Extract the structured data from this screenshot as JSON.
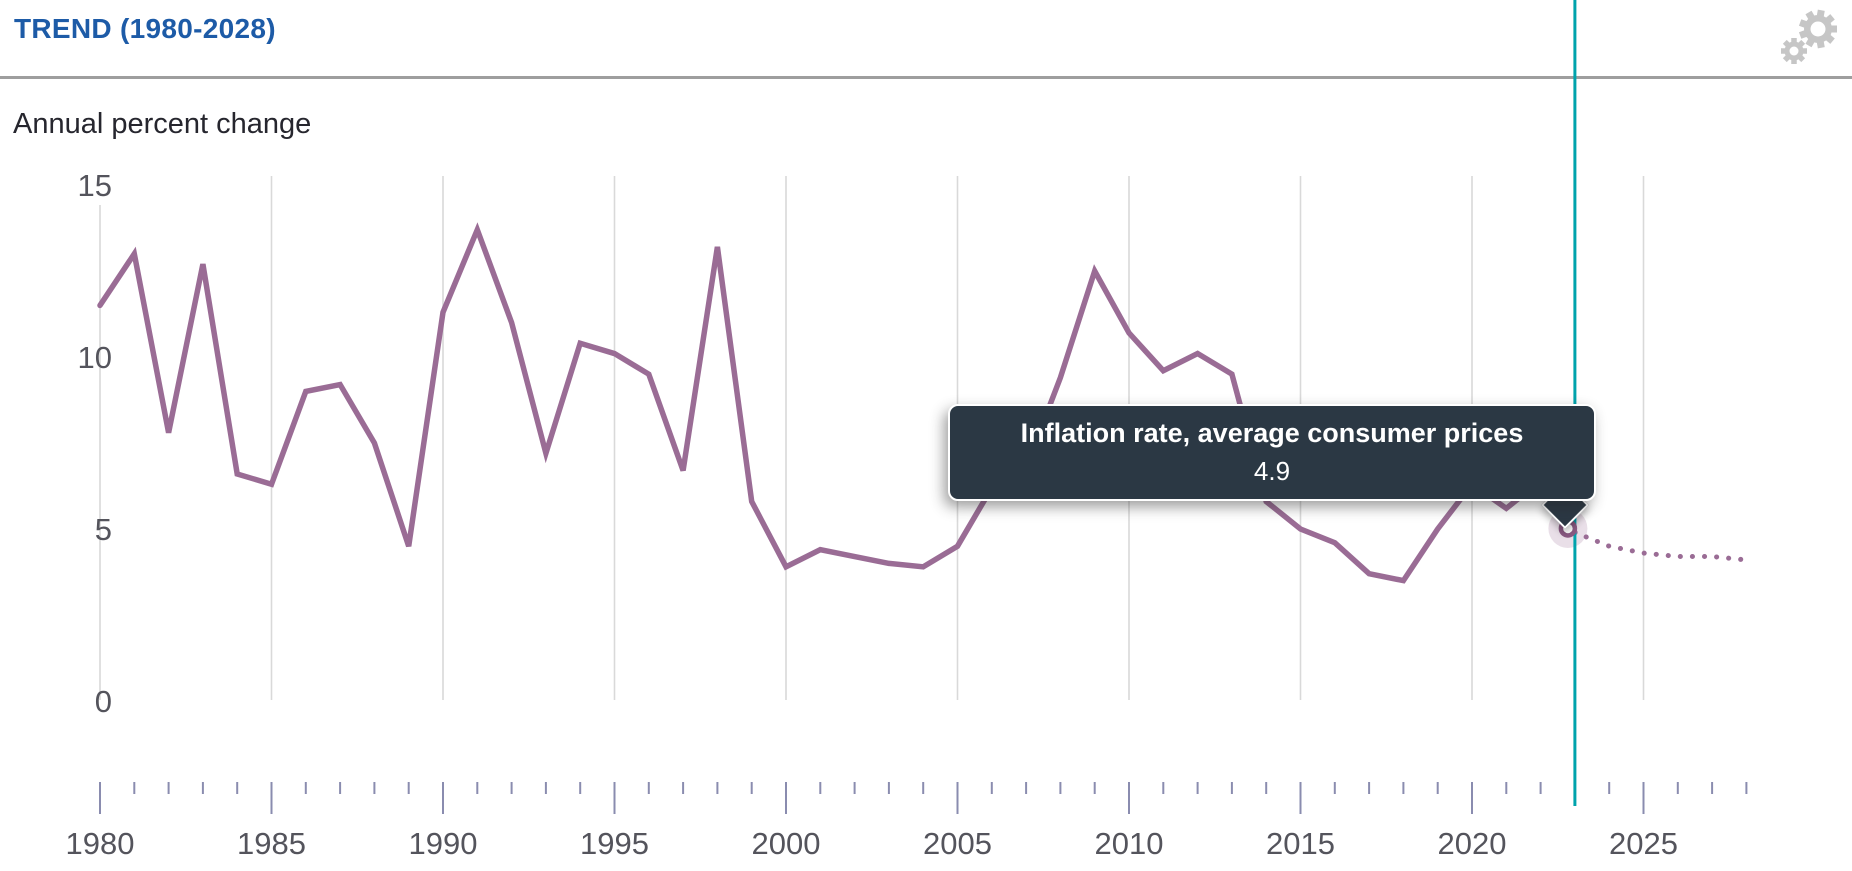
{
  "header": {
    "title": "TREND (1980-2028)"
  },
  "tooltip": {
    "title": "Inflation rate, average consumer prices",
    "value": "4.9"
  },
  "icons": {
    "settings_gear": "gear-icon"
  },
  "colors": {
    "title_blue": "#1D5BA7",
    "divider": "#9E9E9E",
    "subtitle_text": "#26262E",
    "line": "#9A6C95",
    "projection_dots": "#9A6C95",
    "current_year_line": "#00A3AC",
    "gridline": "#D9D9D9",
    "tick": "#8A8CAF",
    "axis_label": "#54545C",
    "tooltip_bg": "#2B3844",
    "tooltip_text": "#FFFFFF",
    "marker_ring": "#8A5A83",
    "marker_halo": "rgba(154,108,149,0.22)",
    "gear": "#C6C6C6"
  },
  "chart_data": {
    "type": "line",
    "title": "TREND (1980-2028)",
    "subtitle": "Annual percent change",
    "series_name": "Inflation rate, average consumer prices",
    "x": [
      1980,
      1981,
      1982,
      1983,
      1984,
      1985,
      1986,
      1987,
      1988,
      1989,
      1990,
      1991,
      1992,
      1993,
      1994,
      1995,
      1996,
      1997,
      1998,
      1999,
      2000,
      2001,
      2002,
      2003,
      2004,
      2005,
      2006,
      2007,
      2008,
      2009,
      2010,
      2011,
      2012,
      2013,
      2014,
      2015,
      2016,
      2017,
      2018,
      2019,
      2020,
      2021,
      2022,
      2023,
      2024,
      2025,
      2026,
      2027,
      2028
    ],
    "values": [
      11.5,
      13.0,
      7.8,
      12.7,
      6.6,
      6.3,
      9.0,
      9.2,
      7.5,
      4.5,
      11.3,
      13.7,
      11.0,
      7.2,
      10.4,
      10.1,
      9.5,
      6.7,
      13.2,
      5.8,
      3.9,
      4.4,
      4.2,
      4.0,
      3.9,
      4.5,
      6.2,
      6.8,
      9.4,
      12.5,
      10.7,
      9.6,
      10.1,
      9.5,
      5.8,
      5.0,
      4.6,
      3.7,
      3.5,
      5.0,
      6.3,
      5.6,
      6.4,
      4.9,
      4.5,
      4.3,
      4.2,
      4.2,
      4.1
    ],
    "solid_until": 2023,
    "projection_style": "dotted",
    "highlight_year": 2023,
    "highlight_value": 4.9,
    "ylim": [
      0,
      15
    ],
    "yticks": [
      0,
      5,
      10,
      15
    ],
    "xtick_labels": [
      1980,
      1985,
      1990,
      1995,
      2000,
      2005,
      2010,
      2015,
      2020,
      2025
    ],
    "gridline_years": [
      1980,
      1985,
      1990,
      1995,
      2000,
      2005,
      2010,
      2015,
      2020,
      2025
    ],
    "minor_tick_every_year": true,
    "grid": "vertical-only",
    "legend": "none"
  }
}
